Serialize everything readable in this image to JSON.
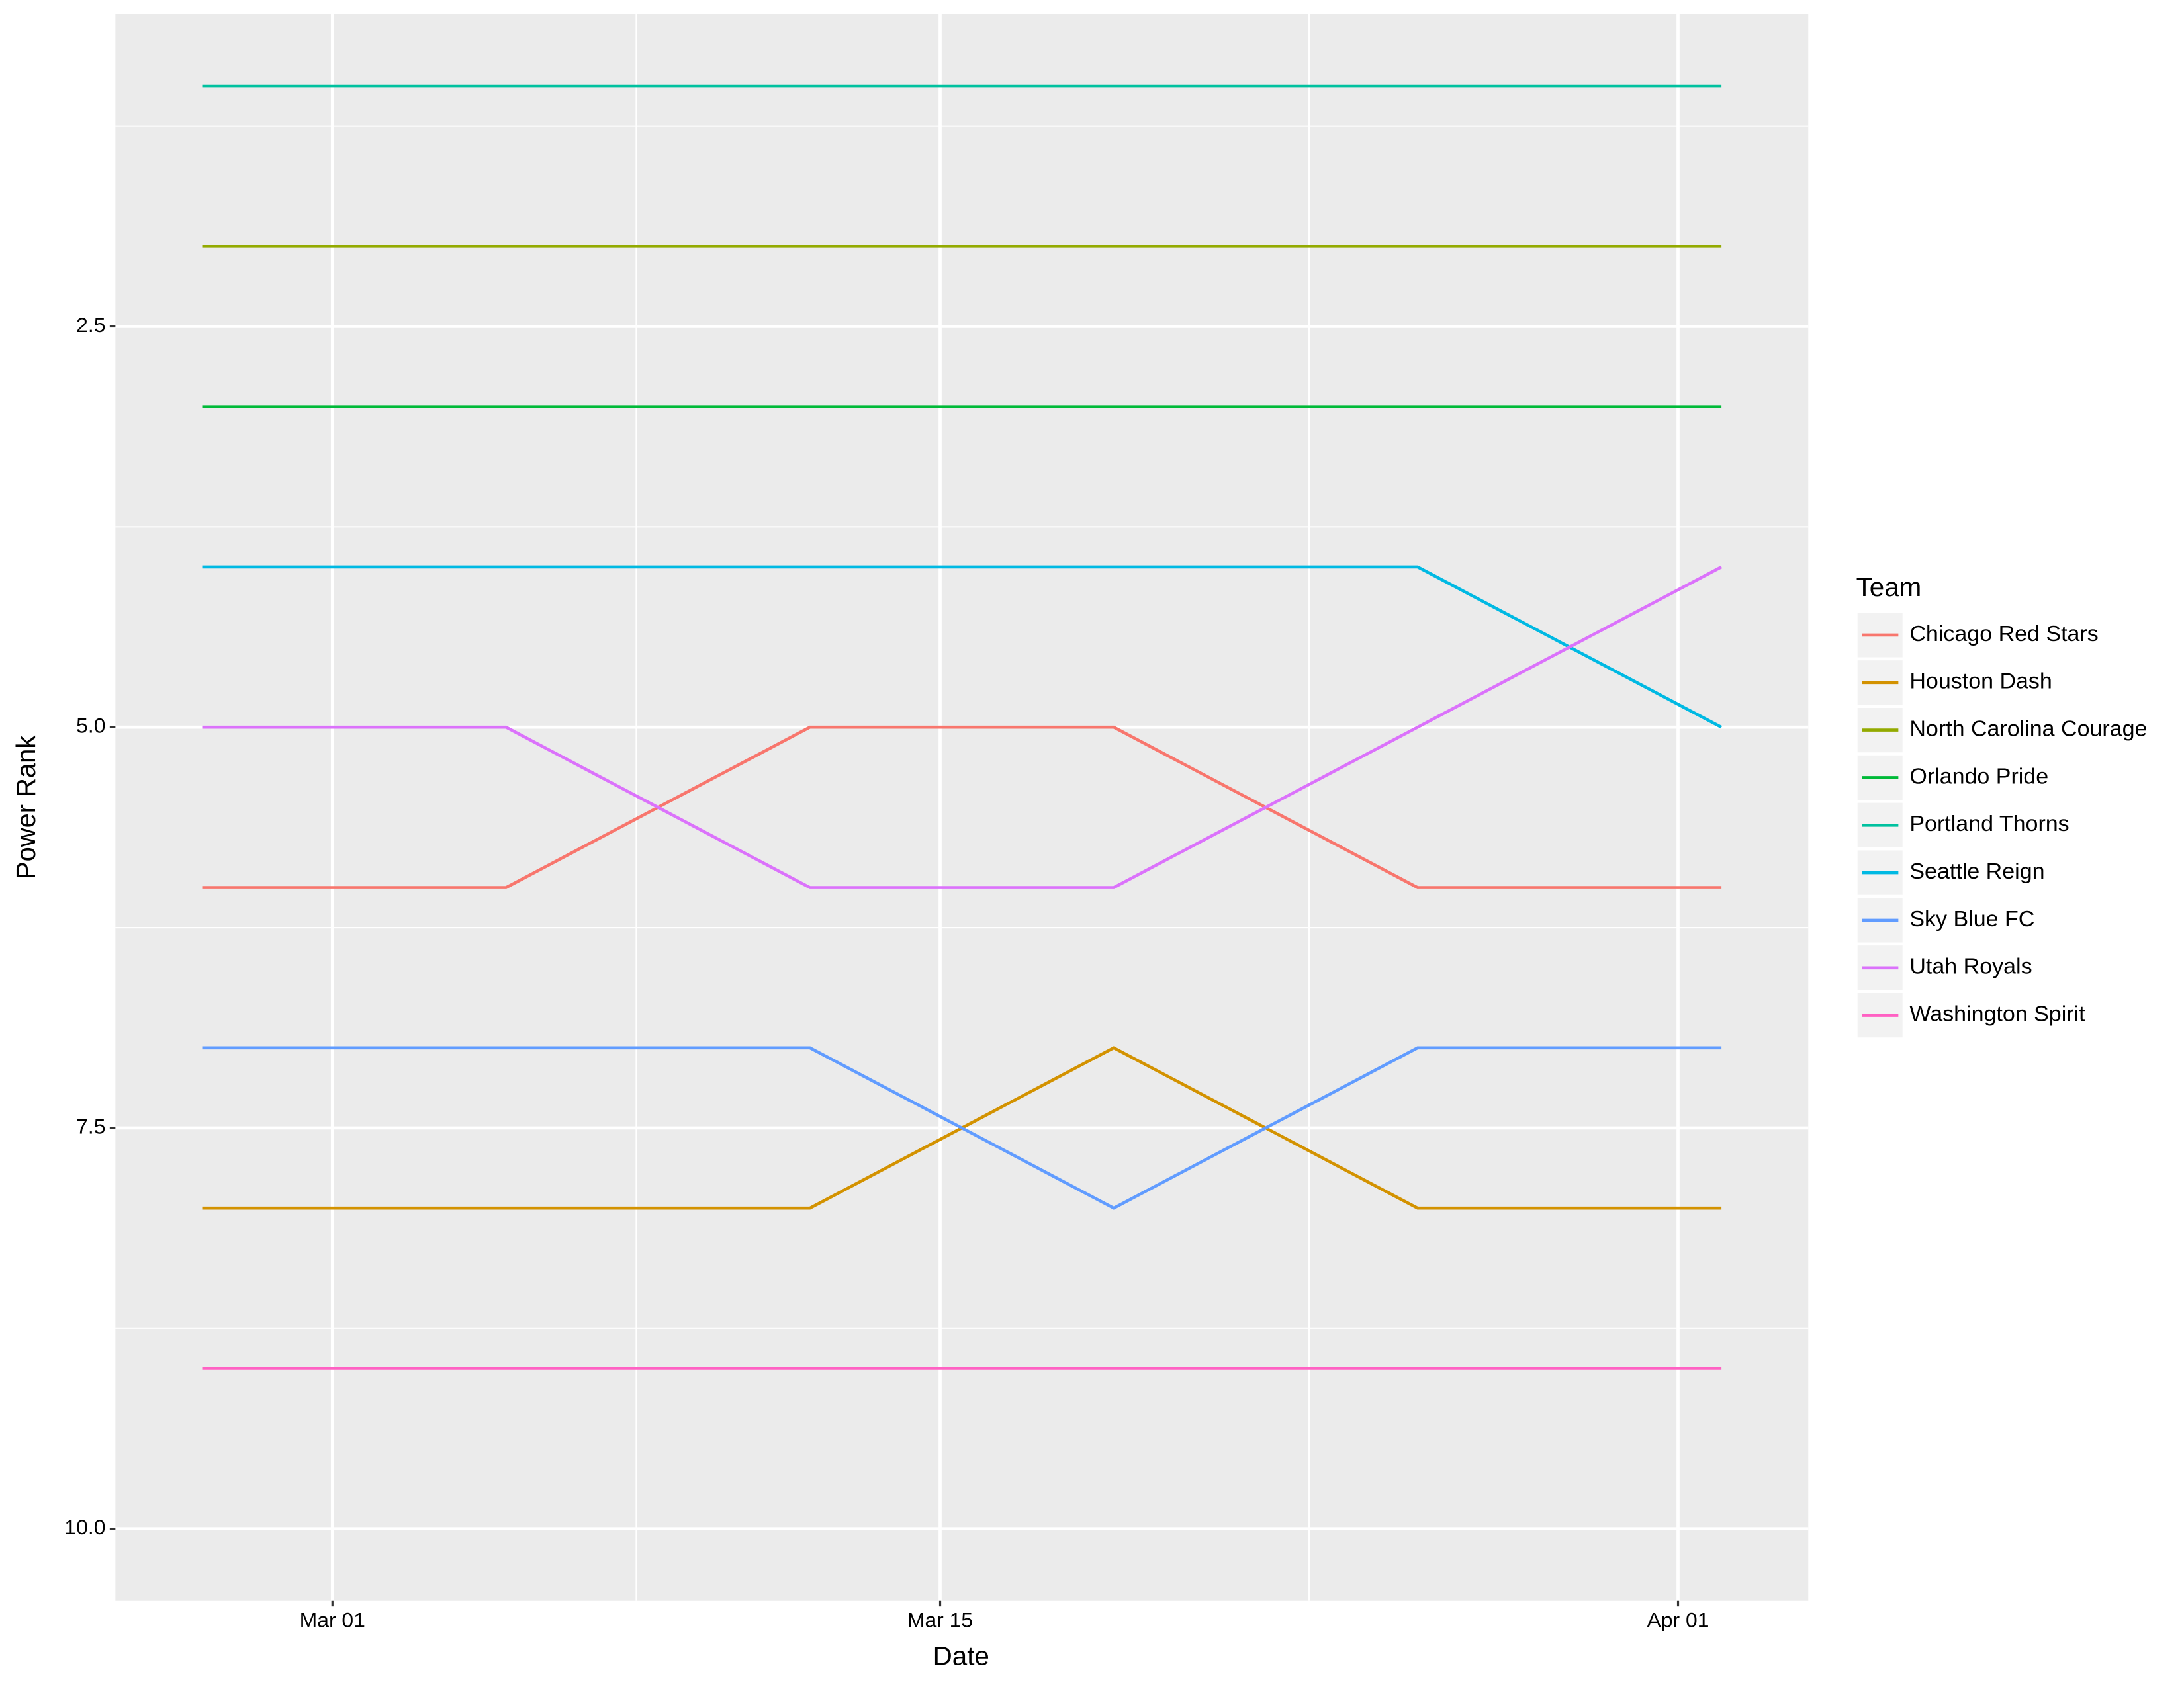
{
  "chart_data": {
    "type": "line",
    "x_label": "Date",
    "y_label": "Power Rank",
    "legend_title": "Team",
    "legend_position": "right",
    "grid": true,
    "x": [
      "Feb 26",
      "Mar 05",
      "Mar 12",
      "Mar 19",
      "Mar 26",
      "Apr 02"
    ],
    "xlim": [
      "Feb 24",
      "Apr 04"
    ],
    "xticks": [
      "Mar 01",
      "Mar 15",
      "Apr 01"
    ],
    "ylim": [
      10.45,
      0.55
    ],
    "yticks": [
      2.5,
      {
        "value": 5,
        "label": "5.0"
      },
      7.5,
      {
        "value": 10,
        "label": "10.0"
      }
    ],
    "series": [
      {
        "name": "Chicago Red Stars",
        "color": "#F8766D",
        "values": [
          6,
          6,
          5,
          5,
          6,
          6
        ]
      },
      {
        "name": "Houston Dash",
        "color": "#D39200",
        "values": [
          8,
          8,
          8,
          7,
          8,
          8
        ]
      },
      {
        "name": "North Carolina Courage",
        "color": "#93AA00",
        "values": [
          2,
          2,
          2,
          2,
          2,
          2
        ]
      },
      {
        "name": "Orlando Pride",
        "color": "#00BA38",
        "values": [
          3,
          3,
          3,
          3,
          3,
          3
        ]
      },
      {
        "name": "Portland Thorns",
        "color": "#00C19F",
        "values": [
          1,
          1,
          1,
          1,
          1,
          1
        ]
      },
      {
        "name": "Seattle Reign",
        "color": "#00B9E3",
        "values": [
          4,
          4,
          4,
          4,
          4,
          5
        ]
      },
      {
        "name": "Sky Blue FC",
        "color": "#619CFF",
        "values": [
          7,
          7,
          7,
          8,
          7,
          7
        ]
      },
      {
        "name": "Utah Royals",
        "color": "#DB72FB",
        "values": [
          5,
          5,
          6,
          6,
          5,
          4
        ]
      },
      {
        "name": "Washington Spirit",
        "color": "#FF61C3",
        "values": [
          9,
          9,
          9,
          9,
          9,
          9
        ]
      }
    ]
  }
}
